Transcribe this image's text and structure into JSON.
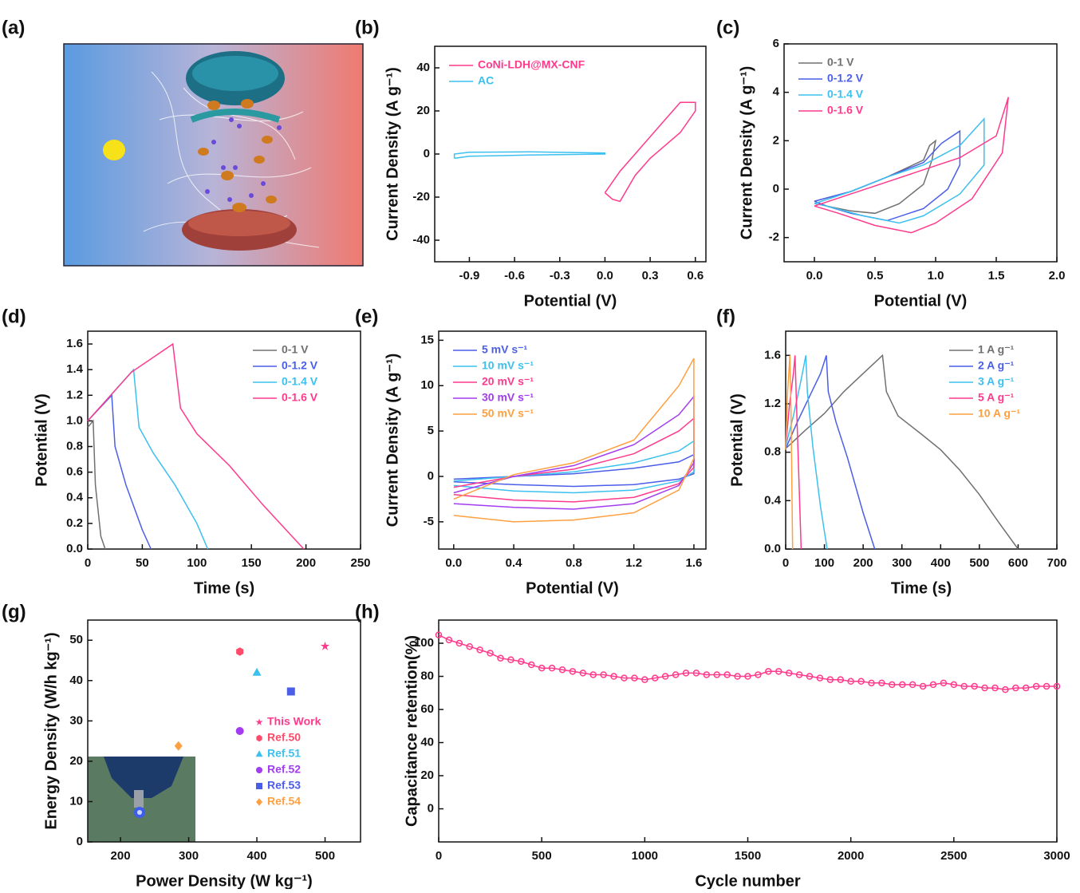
{
  "panel_labels": [
    "(a)",
    "(b)",
    "(c)",
    "(d)",
    "(e)",
    "(f)",
    "(g)",
    "(h)"
  ],
  "chart_data": [
    {
      "type": "line",
      "x_label": "Potential (V)",
      "y_label": "Current Density (A g⁻¹)",
      "legend": "upper left",
      "xlim": [
        -1.13,
        0.67
      ],
      "xticks": [
        -0.9,
        -0.6,
        -0.3,
        {
          "value": 0,
          "label": "0.0"
        },
        0.3,
        0.6
      ],
      "ylim": [
        -50,
        50
      ],
      "yticks": [
        -40,
        -20,
        0,
        20,
        40
      ],
      "series": [
        {
          "name": "CoNi-LDH@MX-CNF",
          "color": "#ff3a8c",
          "x": [
            0,
            0.1,
            0.2,
            0.3,
            0.4,
            0.5,
            0.6,
            0.6,
            0.5,
            0.4,
            0.3,
            0.2,
            0.1,
            0.05,
            0
          ],
          "values": [
            -18,
            -8,
            0,
            8,
            16,
            24,
            24,
            20,
            10,
            4,
            -2,
            -10,
            -22,
            -21,
            -18
          ]
        },
        {
          "name": "AC",
          "color": "#3cc0ef",
          "x": [
            -1,
            -0.9,
            -0.5,
            0,
            0,
            -0.5,
            -0.9,
            -1,
            -1
          ],
          "values": [
            -2,
            -1,
            -0.5,
            0,
            0.5,
            1,
            0.8,
            0,
            -2
          ]
        }
      ]
    },
    {
      "type": "line",
      "x_label": "Potential (V)",
      "y_label": "Current Density (A g⁻¹)",
      "legend": "upper left",
      "xlim": [
        -0.25,
        2.0
      ],
      "xticks": [
        {
          "value": 0,
          "label": "0.0"
        },
        0.5,
        {
          "value": 1,
          "label": "1.0"
        },
        1.5,
        {
          "value": 2,
          "label": "2.0"
        }
      ],
      "ylim": [
        -3,
        6
      ],
      "yticks": [
        -2,
        0,
        2,
        4,
        6
      ],
      "series": [
        {
          "name": "0-1 V",
          "color": "#707070",
          "x": [
            0,
            0.3,
            0.6,
            0.9,
            0.95,
            1.0,
            0.97,
            0.9,
            0.7,
            0.5,
            0.3,
            0.1,
            0
          ],
          "values": [
            -0.5,
            -0.1,
            0.5,
            1.2,
            1.8,
            2.0,
            1.2,
            0.2,
            -0.6,
            -1.0,
            -0.9,
            -0.7,
            -0.5
          ]
        },
        {
          "name": "0-1.2 V",
          "color": "#4a5ee8",
          "x": [
            0,
            0.3,
            0.6,
            0.9,
            1.05,
            1.2,
            1.2,
            1.1,
            0.9,
            0.6,
            0.3,
            0.1,
            0
          ],
          "values": [
            -0.5,
            -0.1,
            0.5,
            1.1,
            1.9,
            2.4,
            1.0,
            0.0,
            -0.8,
            -1.3,
            -1.0,
            -0.7,
            -0.5
          ]
        },
        {
          "name": "0-1.4 V",
          "color": "#3cc0ef",
          "x": [
            0,
            0.3,
            0.6,
            0.9,
            1.2,
            1.4,
            1.4,
            1.2,
            0.9,
            0.7,
            0.4,
            0.1,
            0
          ],
          "values": [
            -0.6,
            -0.1,
            0.5,
            1.0,
            1.8,
            2.9,
            1.0,
            -0.2,
            -1.1,
            -1.4,
            -1.1,
            -0.7,
            -0.6
          ]
        },
        {
          "name": "0-1.6 V",
          "color": "#ff3a8c",
          "x": [
            0,
            0.3,
            0.6,
            0.9,
            1.2,
            1.5,
            1.6,
            1.55,
            1.3,
            1.0,
            0.8,
            0.5,
            0.2,
            0
          ],
          "values": [
            -0.7,
            -0.2,
            0.3,
            0.8,
            1.3,
            2.2,
            3.8,
            1.5,
            -0.4,
            -1.4,
            -1.8,
            -1.5,
            -1.0,
            -0.7
          ]
        }
      ]
    },
    {
      "type": "line",
      "x_label": "Time (s)",
      "y_label": "Potential (V)",
      "legend": "upper right",
      "xlim": [
        0,
        250
      ],
      "xticks": [
        0,
        50,
        100,
        150,
        200,
        250
      ],
      "ylim": [
        0,
        1.7
      ],
      "yticks": [
        {
          "value": 0,
          "label": "0.0"
        },
        0.2,
        0.4,
        0.6,
        0.8,
        {
          "value": 1,
          "label": "1.0"
        },
        1.2,
        1.4,
        1.6
      ],
      "series": [
        {
          "name": "0-1 V",
          "color": "#707070",
          "x": [
            0,
            5,
            7,
            12,
            16
          ],
          "values": [
            0.95,
            1.0,
            0.5,
            0.1,
            0
          ]
        },
        {
          "name": "0-1.2 V",
          "color": "#4a5ee8",
          "x": [
            0,
            22,
            25,
            35,
            50,
            58
          ],
          "values": [
            1.0,
            1.2,
            0.8,
            0.5,
            0.15,
            0
          ]
        },
        {
          "name": "0-1.4 V",
          "color": "#3cc0ef",
          "x": [
            0,
            42,
            47,
            60,
            80,
            100,
            110
          ],
          "values": [
            1.0,
            1.4,
            0.95,
            0.75,
            0.5,
            0.2,
            0
          ]
        },
        {
          "name": "0-1.6 V",
          "color": "#ff3a8c",
          "x": [
            0,
            40,
            78,
            85,
            100,
            130,
            160,
            198
          ],
          "values": [
            1.0,
            1.38,
            1.6,
            1.1,
            0.9,
            0.65,
            0.35,
            0
          ]
        }
      ]
    },
    {
      "type": "line",
      "x_label": "Potential (V)",
      "y_label": "Current Density (A g⁻¹)",
      "legend": "upper left",
      "xlim": [
        -0.1,
        1.68
      ],
      "xticks": [
        {
          "value": 0,
          "label": "0.0"
        },
        0.4,
        0.8,
        1.2,
        1.6
      ],
      "ylim": [
        -8,
        16
      ],
      "yticks": [
        -5,
        0,
        5,
        10,
        15
      ],
      "series": [
        {
          "name": "5  mV s⁻¹",
          "color": "#4a5ee8",
          "x": [
            0,
            0.4,
            0.8,
            1.2,
            1.5,
            1.6,
            1.6,
            1.5,
            1.2,
            0.8,
            0.4,
            0
          ],
          "values": [
            -0.3,
            0,
            0.3,
            0.9,
            1.6,
            2.4,
            0.3,
            -0.3,
            -0.9,
            -1.1,
            -0.9,
            -0.6
          ]
        },
        {
          "name": "10 mV s⁻¹",
          "color": "#3cc0ef",
          "x": [
            0,
            0.4,
            0.8,
            1.2,
            1.5,
            1.6,
            1.6,
            1.5,
            1.2,
            0.8,
            0.4,
            0
          ],
          "values": [
            -0.5,
            0,
            0.5,
            1.5,
            2.8,
            3.9,
            0.5,
            -0.5,
            -1.5,
            -1.8,
            -1.6,
            -1.0
          ]
        },
        {
          "name": "20 mV s⁻¹",
          "color": "#ff3a8c",
          "x": [
            0,
            0.4,
            0.8,
            1.2,
            1.5,
            1.6,
            1.6,
            1.5,
            1.2,
            0.8,
            0.4,
            0
          ],
          "values": [
            -1.2,
            0,
            0.8,
            2.5,
            5.0,
            6.4,
            1.0,
            -0.8,
            -2.3,
            -2.8,
            -2.6,
            -2.0
          ]
        },
        {
          "name": "30 mV s⁻¹",
          "color": "#a33cf0",
          "x": [
            0,
            0.4,
            0.8,
            1.2,
            1.5,
            1.6,
            1.6,
            1.5,
            1.2,
            0.8,
            0.4,
            0
          ],
          "values": [
            -1.8,
            0,
            1.2,
            3.5,
            6.8,
            8.8,
            1.5,
            -1.0,
            -3.0,
            -3.6,
            -3.4,
            -3.0
          ]
        },
        {
          "name": "50 mV s⁻¹",
          "color": "#ffa040",
          "x": [
            0,
            0.4,
            0.8,
            1.2,
            1.5,
            1.6,
            1.6,
            1.5,
            1.2,
            0.8,
            0.4,
            0
          ],
          "values": [
            -2.5,
            0.2,
            1.5,
            4.0,
            10.0,
            13.0,
            2.0,
            -1.5,
            -4.0,
            -4.8,
            -5.0,
            -4.3
          ]
        }
      ]
    },
    {
      "type": "line",
      "x_label": "Time (s)",
      "y_label": "Potential (V)",
      "legend": "upper right",
      "xlim": [
        0,
        700
      ],
      "xticks": [
        0,
        100,
        200,
        300,
        400,
        500,
        600,
        700
      ],
      "ylim": [
        0,
        1.8
      ],
      "yticks": [
        {
          "value": 0,
          "label": "0.0"
        },
        0.4,
        0.8,
        1.2,
        1.6
      ],
      "series": [
        {
          "name": "1 A g⁻¹",
          "color": "#707070",
          "x": [
            0,
            50,
            100,
            150,
            200,
            250,
            260,
            290,
            350,
            400,
            450,
            500,
            550,
            600
          ],
          "values": [
            0.83,
            0.98,
            1.12,
            1.3,
            1.45,
            1.6,
            1.3,
            1.1,
            0.95,
            0.82,
            0.65,
            0.45,
            0.22,
            0
          ]
        },
        {
          "name": "2 A g⁻¹",
          "color": "#4a5ee8",
          "x": [
            0,
            30,
            60,
            90,
            105,
            110,
            130,
            160,
            200,
            230
          ],
          "values": [
            0.83,
            1.05,
            1.25,
            1.45,
            1.6,
            1.3,
            1.05,
            0.75,
            0.3,
            0
          ]
        },
        {
          "name": "3 A g⁻¹",
          "color": "#3cc0ef",
          "x": [
            0,
            20,
            40,
            52,
            56,
            70,
            90,
            107
          ],
          "values": [
            0.85,
            1.1,
            1.4,
            1.6,
            1.3,
            0.85,
            0.35,
            0
          ]
        },
        {
          "name": "5 A g⁻¹",
          "color": "#ff3a8c",
          "x": [
            0,
            10,
            20,
            24,
            27,
            33,
            40
          ],
          "values": [
            0.85,
            1.2,
            1.45,
            1.6,
            1.3,
            0.7,
            0
          ]
        },
        {
          "name": "10 A g⁻¹",
          "color": "#ffa040",
          "x": [
            0,
            5,
            9,
            11,
            14,
            18
          ],
          "values": [
            0.82,
            1.3,
            1.5,
            1.6,
            1.1,
            0
          ]
        }
      ]
    },
    {
      "type": "scatter",
      "x_label": "Power Density (W kg⁻¹)",
      "y_label": "Energy Density (W/h kg⁻¹)",
      "legend": "lower right",
      "xlim": [
        152,
        552
      ],
      "xticks": [
        200,
        300,
        400,
        500
      ],
      "ylim": [
        0,
        55
      ],
      "yticks": [
        0,
        10,
        20,
        30,
        40,
        50
      ],
      "series": [
        {
          "name": "This Work",
          "color": "#ff3a8c",
          "marker": "star",
          "x": [
            500
          ],
          "values": [
            48.5
          ]
        },
        {
          "name": "Ref.50",
          "color": "#ff4a6a",
          "marker": "hexagon",
          "x": [
            375
          ],
          "values": [
            47.2
          ]
        },
        {
          "name": "Ref.51",
          "color": "#3cc0ef",
          "marker": "triangle",
          "x": [
            400
          ],
          "values": [
            42
          ]
        },
        {
          "name": "Ref.52",
          "color": "#a33cf0",
          "marker": "circle",
          "x": [
            375
          ],
          "values": [
            27.5
          ]
        },
        {
          "name": "Ref.53",
          "color": "#4a5ee8",
          "marker": "square",
          "x": [
            450
          ],
          "values": [
            37.3
          ]
        },
        {
          "name": "Ref.54",
          "color": "#ffa040",
          "marker": "diamond",
          "x": [
            285
          ],
          "values": [
            23.8
          ]
        }
      ]
    },
    {
      "type": "line",
      "x_label": "Cycle number",
      "y_label": "Capacitance retention(%)",
      "xlim": [
        0,
        3000
      ],
      "xticks": [
        0,
        500,
        1000,
        1500,
        2000,
        2500,
        3000
      ],
      "ylim": [
        -20,
        114
      ],
      "yticks": [
        0,
        20,
        40,
        60,
        80,
        100
      ],
      "series": [
        {
          "color": "#ff3a8c",
          "marker": "open-circle",
          "x": [
            0,
            50,
            100,
            150,
            200,
            250,
            300,
            350,
            400,
            450,
            500,
            550,
            600,
            650,
            700,
            750,
            800,
            850,
            900,
            950,
            1000,
            1050,
            1100,
            1150,
            1200,
            1250,
            1300,
            1350,
            1400,
            1450,
            1500,
            1550,
            1600,
            1650,
            1700,
            1750,
            1800,
            1850,
            1900,
            1950,
            2000,
            2050,
            2100,
            2150,
            2200,
            2250,
            2300,
            2350,
            2400,
            2450,
            2500,
            2550,
            2600,
            2650,
            2700,
            2750,
            2800,
            2850,
            2900,
            2950,
            3000
          ],
          "values": [
            105,
            102,
            100,
            98,
            96,
            94,
            91,
            90,
            89,
            87,
            85,
            85,
            84,
            83,
            82,
            81,
            81,
            80,
            79,
            79,
            78,
            79,
            80,
            81,
            82,
            82,
            81,
            81,
            81,
            80,
            80,
            81,
            83,
            83,
            82,
            81,
            80,
            79,
            78,
            78,
            77,
            77,
            76,
            76,
            75,
            75,
            75,
            74,
            75,
            76,
            75,
            74,
            74,
            73,
            73,
            72,
            73,
            73,
            74,
            74,
            74
          ]
        }
      ]
    }
  ]
}
